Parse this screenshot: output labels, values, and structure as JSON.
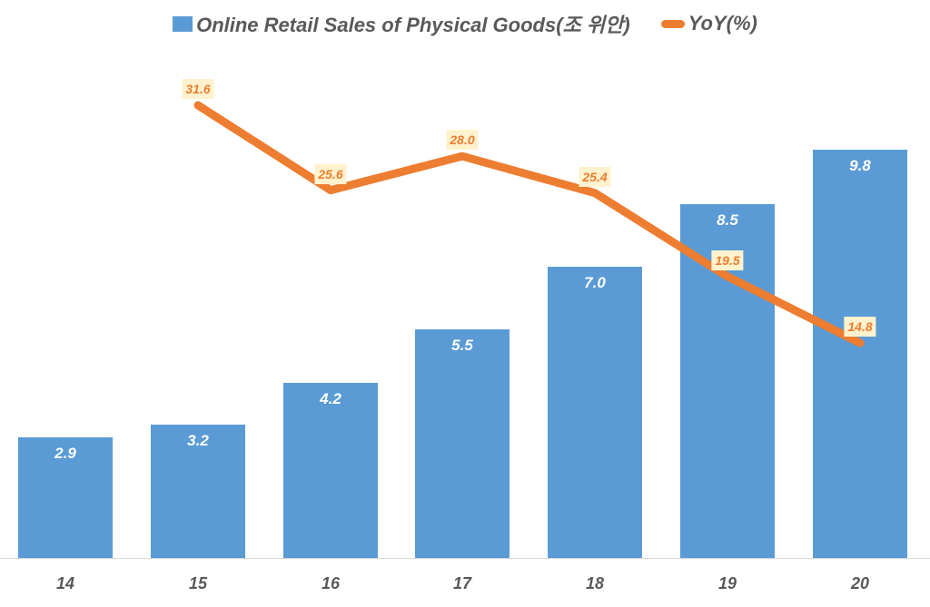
{
  "chart_data": {
    "type": "bar+line",
    "title": "",
    "categories": [
      "14",
      "15",
      "16",
      "17",
      "18",
      "19",
      "20"
    ],
    "series": [
      {
        "name": "Online Retail Sales of Physical Goods(조 위안)",
        "type": "bar",
        "axis": "primary",
        "color": "#5b9bd5",
        "values": [
          2.9,
          3.2,
          4.2,
          5.5,
          7.0,
          8.5,
          9.8
        ],
        "labels": [
          "2.9",
          "3.2",
          "4.2",
          "5.5",
          "7.0",
          "8.5",
          "9.8"
        ]
      },
      {
        "name": "YoY(%)",
        "type": "line",
        "axis": "secondary",
        "color": "#ed7d31",
        "values": [
          null,
          31.6,
          25.6,
          28.0,
          25.4,
          19.5,
          14.8
        ],
        "labels": [
          "",
          "31.6",
          "25.6",
          "28.0",
          "25.4",
          "19.5",
          "14.8"
        ]
      }
    ],
    "xlabel": "",
    "ylabel": "",
    "legend_position": "top",
    "grid": false,
    "label_box_color": "#fff2cc"
  },
  "legend": {
    "bar_label": "Online Retail Sales of Physical Goods(조 위안)",
    "line_label": "YoY(%)"
  }
}
